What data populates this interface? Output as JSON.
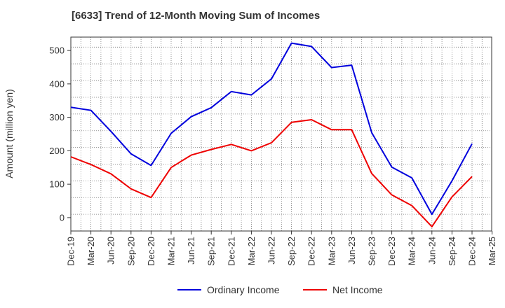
{
  "chart_data": {
    "type": "line",
    "title": "[6633]  Trend of 12-Month Moving Sum of Incomes",
    "xlabel": "",
    "ylabel": "Amount (million yen)",
    "categories": [
      "Dec-19",
      "Mar-20",
      "Jun-20",
      "Sep-20",
      "Dec-20",
      "Mar-21",
      "Jun-21",
      "Sep-21",
      "Dec-21",
      "Mar-22",
      "Jun-22",
      "Sep-22",
      "Dec-22",
      "Mar-23",
      "Jun-23",
      "Sep-23",
      "Dec-23",
      "Mar-24",
      "Jun-24",
      "Sep-24",
      "Dec-24",
      "Mar-25"
    ],
    "ylim": [
      -40,
      540
    ],
    "yticks": [
      0,
      100,
      200,
      300,
      400,
      500
    ],
    "grid": true,
    "legend_position": "bottom",
    "series": [
      {
        "name": "Ordinary Income",
        "color": "#0000dd",
        "values": [
          330,
          321,
          258,
          191,
          156,
          252,
          302,
          329,
          377,
          367,
          415,
          522,
          512,
          449,
          456,
          254,
          151,
          119,
          10,
          110,
          221,
          null
        ]
      },
      {
        "name": "Net Income",
        "color": "#ee0000",
        "values": [
          182,
          159,
          131,
          86,
          60,
          150,
          187,
          204,
          219,
          200,
          224,
          285,
          293,
          263,
          263,
          132,
          68,
          36,
          -27,
          62,
          123,
          null
        ]
      }
    ]
  }
}
